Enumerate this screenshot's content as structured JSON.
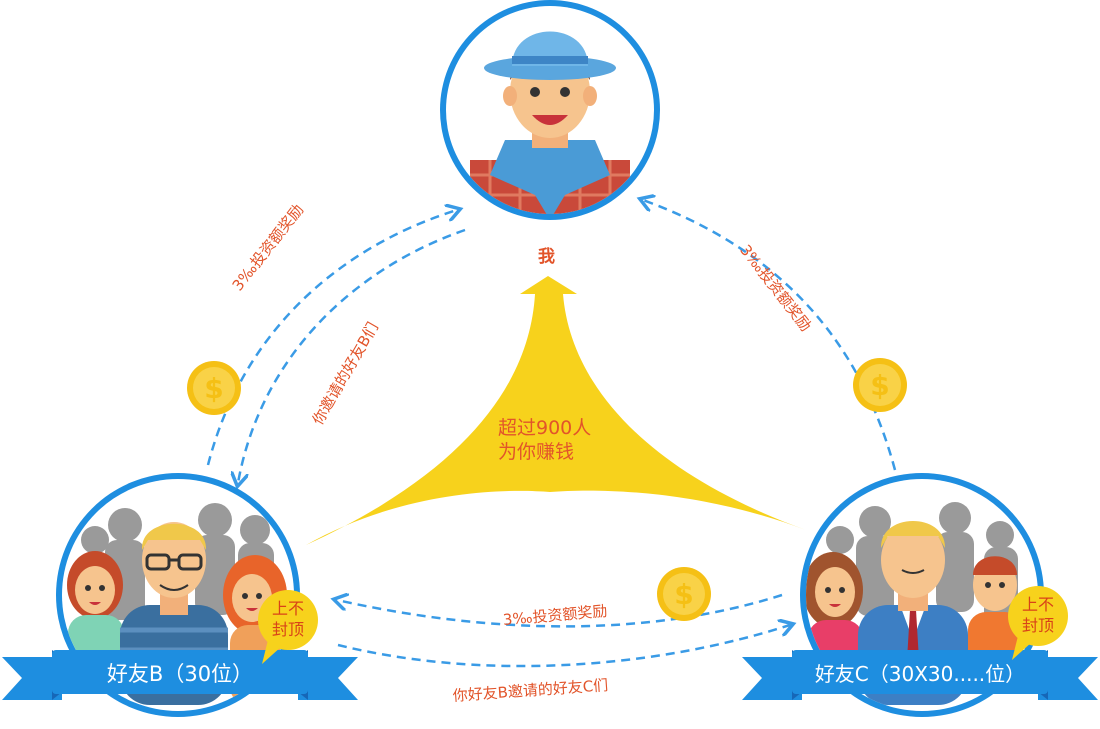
{
  "me": {
    "label": "我"
  },
  "center": {
    "line1": "超过900人",
    "line2": "为你赚钱"
  },
  "left_arrow": {
    "outer": "3‰投资额奖励",
    "inner": "你邀请的好友B们"
  },
  "right_arrow": {
    "outer": "3‰投资额奖励"
  },
  "bottom_arrow": {
    "top": "3‰投资额奖励",
    "bottom": "你好友B邀请的好友C们"
  },
  "friend_b": {
    "label": "好友B（30位）",
    "bubble_line1": "上不",
    "bubble_line2": "封顶"
  },
  "friend_c": {
    "label": "好友C（30X30.....位）",
    "bubble_line1": "上不",
    "bubble_line2": "封顶"
  },
  "colors": {
    "ring_blue": "#1e8ee0",
    "ribbon_blue": "#1e8ee0",
    "ribbon_dark": "#1667b8",
    "dash_blue": "#3a9be6",
    "arrow_yellow": "#f7d21c",
    "coin_yellow": "#f5c015",
    "text_red": "#e2542a"
  },
  "icons": [
    "avatar-boy-hat-icon",
    "group-people-icon",
    "coin-icon",
    "speech-bubble-icon",
    "arrow-up-icon"
  ]
}
